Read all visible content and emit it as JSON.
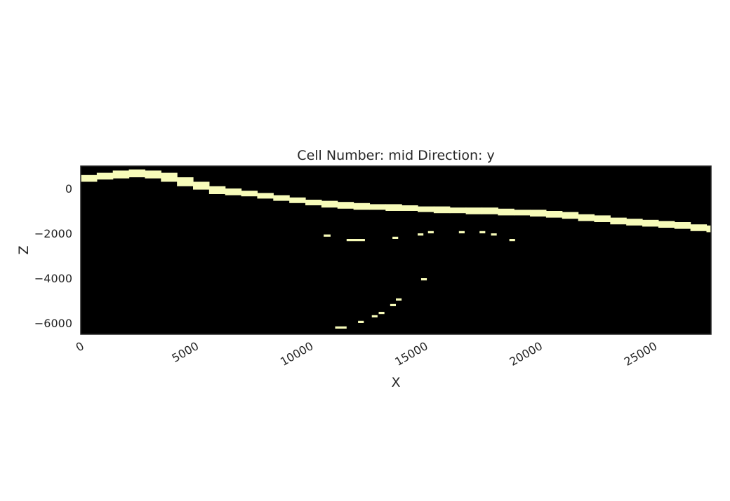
{
  "chart_data": {
    "type": "heatmap",
    "title": "Cell Number: mid Direction: y",
    "xlabel": "X",
    "ylabel": "Z",
    "xlim": [
      0,
      27500
    ],
    "ylim": [
      -6500,
      1000
    ],
    "xticks": [
      0,
      5000,
      10000,
      15000,
      20000,
      25000
    ],
    "yticks": [
      0,
      -2000,
      -4000,
      -6000
    ],
    "xtick_labels": [
      "0",
      "5000",
      "10000",
      "15000",
      "20000",
      "25000"
    ],
    "ytick_labels": [
      "0",
      "−2000",
      "−4000",
      "−6000"
    ],
    "grid": false,
    "background_color": "#000000",
    "cell_color": "#f7fbb9",
    "frame_color": "#262626",
    "surface_band": [
      {
        "x": 0,
        "top": 600,
        "bottom": 300
      },
      {
        "x": 700,
        "top": 700,
        "bottom": 400
      },
      {
        "x": 1400,
        "top": 800,
        "bottom": 450
      },
      {
        "x": 2100,
        "top": 850,
        "bottom": 500
      },
      {
        "x": 2800,
        "top": 800,
        "bottom": 450
      },
      {
        "x": 3500,
        "top": 700,
        "bottom": 300
      },
      {
        "x": 4200,
        "top": 500,
        "bottom": 100
      },
      {
        "x": 4900,
        "top": 300,
        "bottom": -50
      },
      {
        "x": 5600,
        "top": 100,
        "bottom": -250
      },
      {
        "x": 6300,
        "top": 0,
        "bottom": -300
      },
      {
        "x": 7000,
        "top": -100,
        "bottom": -350
      },
      {
        "x": 7700,
        "top": -200,
        "bottom": -450
      },
      {
        "x": 8400,
        "top": -300,
        "bottom": -550
      },
      {
        "x": 9100,
        "top": -400,
        "bottom": -650
      },
      {
        "x": 9800,
        "top": -500,
        "bottom": -750
      },
      {
        "x": 10500,
        "top": -550,
        "bottom": -850
      },
      {
        "x": 11200,
        "top": -600,
        "bottom": -900
      },
      {
        "x": 11900,
        "top": -650,
        "bottom": -950
      },
      {
        "x": 12600,
        "top": -700,
        "bottom": -950
      },
      {
        "x": 13300,
        "top": -700,
        "bottom": -1000
      },
      {
        "x": 14000,
        "top": -750,
        "bottom": -1000
      },
      {
        "x": 14700,
        "top": -800,
        "bottom": -1050
      },
      {
        "x": 15400,
        "top": -800,
        "bottom": -1100
      },
      {
        "x": 16100,
        "top": -850,
        "bottom": -1100
      },
      {
        "x": 16800,
        "top": -850,
        "bottom": -1150
      },
      {
        "x": 17500,
        "top": -850,
        "bottom": -1150
      },
      {
        "x": 18200,
        "top": -900,
        "bottom": -1200
      },
      {
        "x": 18900,
        "top": -950,
        "bottom": -1200
      },
      {
        "x": 19600,
        "top": -950,
        "bottom": -1250
      },
      {
        "x": 20300,
        "top": -1000,
        "bottom": -1300
      },
      {
        "x": 21000,
        "top": -1050,
        "bottom": -1350
      },
      {
        "x": 21700,
        "top": -1150,
        "bottom": -1450
      },
      {
        "x": 22400,
        "top": -1200,
        "bottom": -1500
      },
      {
        "x": 23100,
        "top": -1300,
        "bottom": -1600
      },
      {
        "x": 23800,
        "top": -1350,
        "bottom": -1650
      },
      {
        "x": 24500,
        "top": -1400,
        "bottom": -1700
      },
      {
        "x": 25200,
        "top": -1450,
        "bottom": -1750
      },
      {
        "x": 25900,
        "top": -1500,
        "bottom": -1800
      },
      {
        "x": 26600,
        "top": -1600,
        "bottom": -1900
      },
      {
        "x": 27300,
        "top": -1650,
        "bottom": -1950
      }
    ],
    "cells": [
      {
        "x0": 10600,
        "x1": 10900,
        "z0": -2150,
        "z1": -2050
      },
      {
        "x0": 11600,
        "x1": 12400,
        "z0": -2350,
        "z1": -2250
      },
      {
        "x0": 13600,
        "x1": 13850,
        "z0": -2250,
        "z1": -2150
      },
      {
        "x0": 14700,
        "x1": 14950,
        "z0": -2100,
        "z1": -2000
      },
      {
        "x0": 15150,
        "x1": 15400,
        "z0": -2000,
        "z1": -1900
      },
      {
        "x0": 16500,
        "x1": 16750,
        "z0": -2000,
        "z1": -1900
      },
      {
        "x0": 17400,
        "x1": 17650,
        "z0": -2000,
        "z1": -1900
      },
      {
        "x0": 17900,
        "x1": 18150,
        "z0": -2100,
        "z1": -2000
      },
      {
        "x0": 18700,
        "x1": 18950,
        "z0": -2350,
        "z1": -2250
      },
      {
        "x0": 14850,
        "x1": 15100,
        "z0": -4100,
        "z1": -4000
      },
      {
        "x0": 13750,
        "x1": 14000,
        "z0": -5000,
        "z1": -4900
      },
      {
        "x0": 13500,
        "x1": 13750,
        "z0": -5250,
        "z1": -5150
      },
      {
        "x0": 13000,
        "x1": 13250,
        "z0": -5600,
        "z1": -5500
      },
      {
        "x0": 12700,
        "x1": 12950,
        "z0": -5750,
        "z1": -5650
      },
      {
        "x0": 12100,
        "x1": 12350,
        "z0": -6000,
        "z1": -5900
      },
      {
        "x0": 11100,
        "x1": 11600,
        "z0": -6250,
        "z1": -6150
      }
    ]
  }
}
